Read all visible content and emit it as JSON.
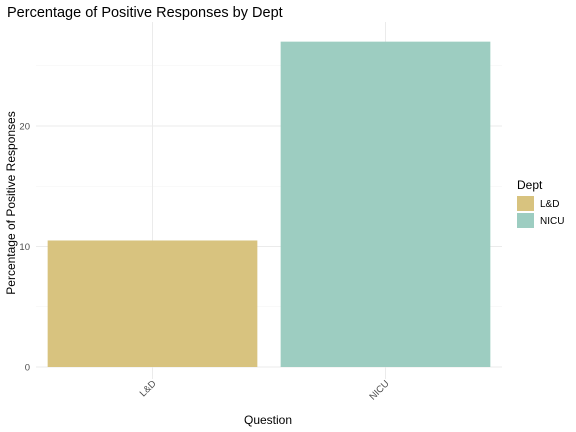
{
  "chart_data": {
    "type": "bar",
    "title": "Percentage of Positive Responses by Dept",
    "xlabel": "Question",
    "ylabel": "Percentage of Positive Responses",
    "categories": [
      "L&D",
      "NICU"
    ],
    "values": [
      10.5,
      27
    ],
    "ylim": [
      0,
      28.3
    ],
    "yticks": [
      0,
      10,
      20
    ],
    "grid": true,
    "legend": {
      "title": "Dept",
      "position": "right",
      "entries": [
        {
          "label": "L&D",
          "color": "#d8c37f"
        },
        {
          "label": "NICU",
          "color": "#9dcdc1"
        }
      ]
    },
    "colors": [
      "#d8c37f",
      "#9dcdc1"
    ]
  }
}
